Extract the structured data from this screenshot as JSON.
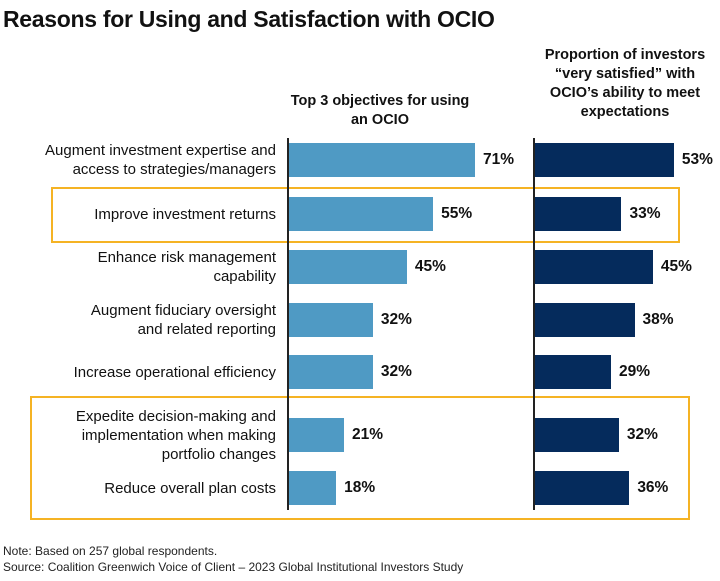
{
  "chart_data": {
    "type": "bar",
    "title": "Reasons for Using and Satisfaction with OCIO",
    "categories": [
      "Augment investment expertise and access to strategies/managers",
      "Improve investment returns",
      "Enhance risk management capability",
      "Augment fiduciary oversight and related reporting",
      "Increase operational efficiency",
      "Expedite decision-making and implementation when making portfolio changes",
      "Reduce overall plan costs"
    ],
    "series": [
      {
        "name": "Top 3 objectives for using an OCIO",
        "values": [
          71,
          55,
          45,
          32,
          32,
          21,
          18
        ],
        "labels": [
          "71%",
          "55%",
          "45%",
          "32%",
          "32%",
          "21%",
          "18%"
        ],
        "color": "#4f9ac4"
      },
      {
        "name": "Proportion of investors “very satisfied” with OCIO’s ability to meet expectations",
        "values": [
          53,
          33,
          45,
          38,
          29,
          32,
          36
        ],
        "labels": [
          "53%",
          "33%",
          "45%",
          "38%",
          "29%",
          "32%",
          "36%"
        ],
        "color": "#052b5c"
      }
    ],
    "highlight_color": "#f5b324",
    "xlim": [
      0,
      100
    ]
  },
  "footnotes": {
    "note": "Note: Based on 257 global respondents.",
    "source": "Source: Coalition Greenwich Voice of Client – 2023 Global Institutional Investors Study"
  }
}
